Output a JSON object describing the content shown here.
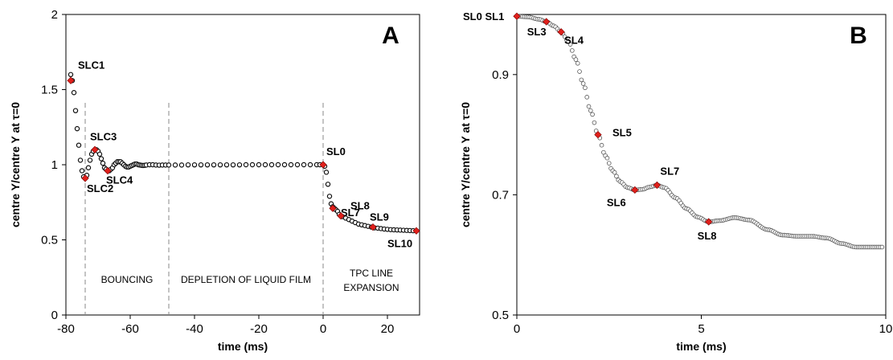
{
  "chart_data": [
    {
      "type": "scatter",
      "panel_label": "A",
      "xlabel": "time (ms)",
      "ylabel": "centre Y/centre Y at τ=0",
      "xlim": [
        -80,
        30
      ],
      "ylim": [
        0,
        2
      ],
      "xticks": [
        -80,
        -60,
        -40,
        -20,
        0,
        20
      ],
      "yticks": [
        0,
        0.5,
        1,
        1.5,
        2
      ],
      "ytick_labels": [
        "0",
        "0.5",
        "1",
        "1.5",
        "2"
      ],
      "grid": false,
      "series": [
        {
          "marker": "open-circle",
          "color": "#000000",
          "points": [
            [
              -78.5,
              1.6
            ],
            [
              -78,
              1.56
            ],
            [
              -77.5,
              1.48
            ],
            [
              -77,
              1.36
            ],
            [
              -76.5,
              1.24
            ],
            [
              -76,
              1.13
            ],
            [
              -75.5,
              1.03
            ],
            [
              -75,
              0.96
            ],
            [
              -74.5,
              0.92
            ],
            [
              -74,
              0.91
            ],
            [
              -73.5,
              0.93
            ],
            [
              -73,
              0.98
            ],
            [
              -72.5,
              1.03
            ],
            [
              -72,
              1.07
            ],
            [
              -71.5,
              1.09
            ],
            [
              -71,
              1.1
            ],
            [
              -70.5,
              1.1
            ],
            [
              -70,
              1.09
            ],
            [
              -69.5,
              1.07
            ],
            [
              -69,
              1.04
            ],
            [
              -68.5,
              1.01
            ],
            [
              -68,
              0.98
            ],
            [
              -67.5,
              0.97
            ],
            [
              -67,
              0.96
            ],
            [
              -66.5,
              0.96
            ],
            [
              -66,
              0.97
            ],
            [
              -65.5,
              0.98
            ],
            [
              -65,
              1.0
            ],
            [
              -64.5,
              1.01
            ],
            [
              -64,
              1.02
            ],
            [
              -63.5,
              1.02
            ],
            [
              -63,
              1.02
            ],
            [
              -62.5,
              1.01
            ],
            [
              -62,
              1.0
            ],
            [
              -61.5,
              0.99
            ],
            [
              -61,
              0.985
            ],
            [
              -60.5,
              0.985
            ],
            [
              -60,
              0.99
            ],
            [
              -59.5,
              0.995
            ],
            [
              -59,
              1.0
            ],
            [
              -58.5,
              1.005
            ],
            [
              -58,
              1.005
            ],
            [
              -57.5,
              1.0
            ],
            [
              -57,
              0.998
            ],
            [
              -56.5,
              0.996
            ],
            [
              -56,
              0.995
            ],
            [
              -55.5,
              0.996
            ],
            [
              -55,
              0.998
            ],
            [
              -54,
              1.0
            ],
            [
              -53,
              1.0
            ],
            [
              -52,
              0.998
            ],
            [
              -51,
              0.997
            ],
            [
              -50,
              0.998
            ],
            [
              -49,
              0.998
            ],
            [
              -48,
              0.998
            ],
            [
              -46,
              0.998
            ],
            [
              -44,
              0.998
            ],
            [
              -42,
              0.999
            ],
            [
              -40,
              0.999
            ],
            [
              -38,
              0.999
            ],
            [
              -36,
              0.999
            ],
            [
              -34,
              0.999
            ],
            [
              -32,
              0.999
            ],
            [
              -30,
              0.999
            ],
            [
              -28,
              0.999
            ],
            [
              -26,
              0.999
            ],
            [
              -24,
              1.0
            ],
            [
              -22,
              1.0
            ],
            [
              -20,
              1.0
            ],
            [
              -18,
              1.0
            ],
            [
              -16,
              1.0
            ],
            [
              -14,
              1.0
            ],
            [
              -12,
              1.0
            ],
            [
              -10,
              1.0
            ],
            [
              -8,
              1.0
            ],
            [
              -6,
              1.0
            ],
            [
              -4,
              1.0
            ],
            [
              -2,
              1.0
            ],
            [
              -1,
              1.0
            ],
            [
              0,
              1.0
            ],
            [
              0.5,
              0.99
            ],
            [
              1,
              0.95
            ],
            [
              1.5,
              0.87
            ],
            [
              2,
              0.79
            ],
            [
              2.5,
              0.74
            ],
            [
              3,
              0.72
            ],
            [
              3.5,
              0.71
            ],
            [
              4,
              0.7
            ],
            [
              4.5,
              0.69
            ],
            [
              5,
              0.67
            ],
            [
              5.5,
              0.66
            ],
            [
              6,
              0.655
            ],
            [
              7,
              0.645
            ],
            [
              8,
              0.635
            ],
            [
              9,
              0.625
            ],
            [
              10,
              0.615
            ],
            [
              11,
              0.605
            ],
            [
              12,
              0.6
            ],
            [
              13,
              0.595
            ],
            [
              14,
              0.59
            ],
            [
              15,
              0.585
            ],
            [
              16,
              0.58
            ],
            [
              17,
              0.578
            ],
            [
              18,
              0.575
            ],
            [
              19,
              0.572
            ],
            [
              20,
              0.57
            ],
            [
              21,
              0.568
            ],
            [
              22,
              0.567
            ],
            [
              23,
              0.566
            ],
            [
              24,
              0.565
            ],
            [
              25,
              0.564
            ],
            [
              26,
              0.563
            ],
            [
              27,
              0.562
            ],
            [
              28,
              0.561
            ],
            [
              29,
              0.56
            ]
          ]
        }
      ],
      "highlight_points": [
        {
          "label": "SLC1",
          "x": -78.5,
          "y": 1.56
        },
        {
          "label": "SLC2",
          "x": -74,
          "y": 0.91
        },
        {
          "label": "SLC3",
          "x": -71,
          "y": 1.1
        },
        {
          "label": "SLC4",
          "x": -67,
          "y": 0.96
        },
        {
          "label": "SL0",
          "x": 0,
          "y": 1.0
        },
        {
          "label": "SL7",
          "x": 3,
          "y": 0.71
        },
        {
          "label": "SL8",
          "x": 5.5,
          "y": 0.66
        },
        {
          "label": "SL9",
          "x": 15.5,
          "y": 0.585
        },
        {
          "label": "SL10",
          "x": 29,
          "y": 0.56
        }
      ],
      "vlines": [
        -74,
        -48,
        0
      ],
      "regions": [
        {
          "label": "BOUNCING",
          "x": -61
        },
        {
          "label": "DEPLETION OF LIQUID FILM",
          "x": -24
        },
        {
          "label": "TPC LINE",
          "label2": "EXPANSION",
          "x": 15
        }
      ],
      "highlight_color": "#e0201b"
    },
    {
      "type": "scatter",
      "panel_label": "B",
      "xlabel": "time (ms)",
      "ylabel": "centre Y/centre Y at τ=0",
      "xlim": [
        0,
        10
      ],
      "ylim": [
        0.5,
        1.0
      ],
      "xticks": [
        0,
        5,
        10
      ],
      "yticks": [
        0.5,
        0.7,
        0.9
      ],
      "ytick_labels": [
        "0.5",
        "0.7",
        "0.9"
      ],
      "grid": false,
      "series": [
        {
          "marker": "open-circle",
          "color": "#000000",
          "points": []
        }
      ],
      "highlight_points": [
        {
          "label": "SL0 SL1",
          "x": 0,
          "y": 0.997
        },
        {
          "label": "SL3",
          "x": 0.8,
          "y": 0.988
        },
        {
          "label": "SL4",
          "x": 1.2,
          "y": 0.971
        },
        {
          "label": "SL5",
          "x": 2.2,
          "y": 0.8
        },
        {
          "label": "SL6",
          "x": 3.2,
          "y": 0.708
        },
        {
          "label": "SL7",
          "x": 3.8,
          "y": 0.716
        },
        {
          "label": "SL8",
          "x": 5.2,
          "y": 0.655
        }
      ],
      "highlight_color": "#e0201b"
    }
  ]
}
